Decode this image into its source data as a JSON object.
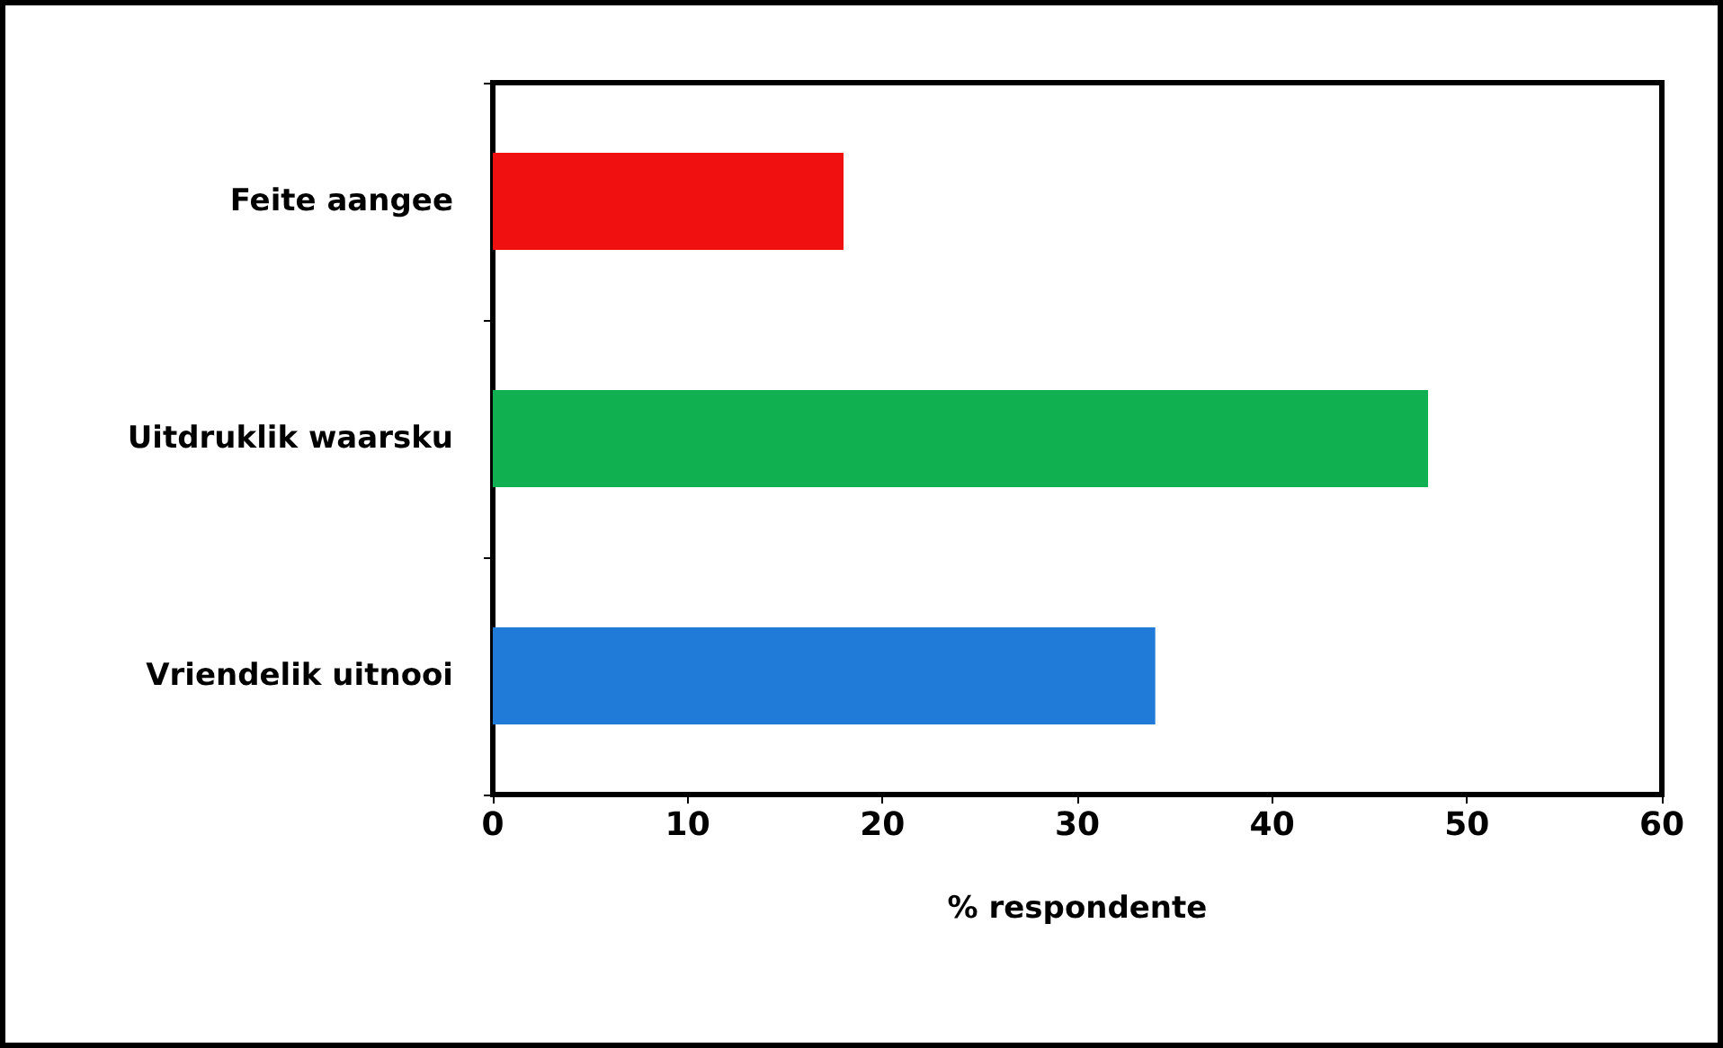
{
  "chart_data": {
    "type": "bar",
    "orientation": "horizontal",
    "xlabel": "% respondente",
    "categories": [
      "Feite aangee",
      "Uitdruklik waarsku",
      "Vriendelik uitnooi"
    ],
    "values": [
      18,
      48,
      34
    ],
    "colors": [
      "#f01010",
      "#10b050",
      "#1f7ad8"
    ],
    "xlim": [
      0,
      60
    ],
    "xticks": [
      0,
      10,
      20,
      30,
      40,
      50,
      60
    ],
    "grid": false
  }
}
